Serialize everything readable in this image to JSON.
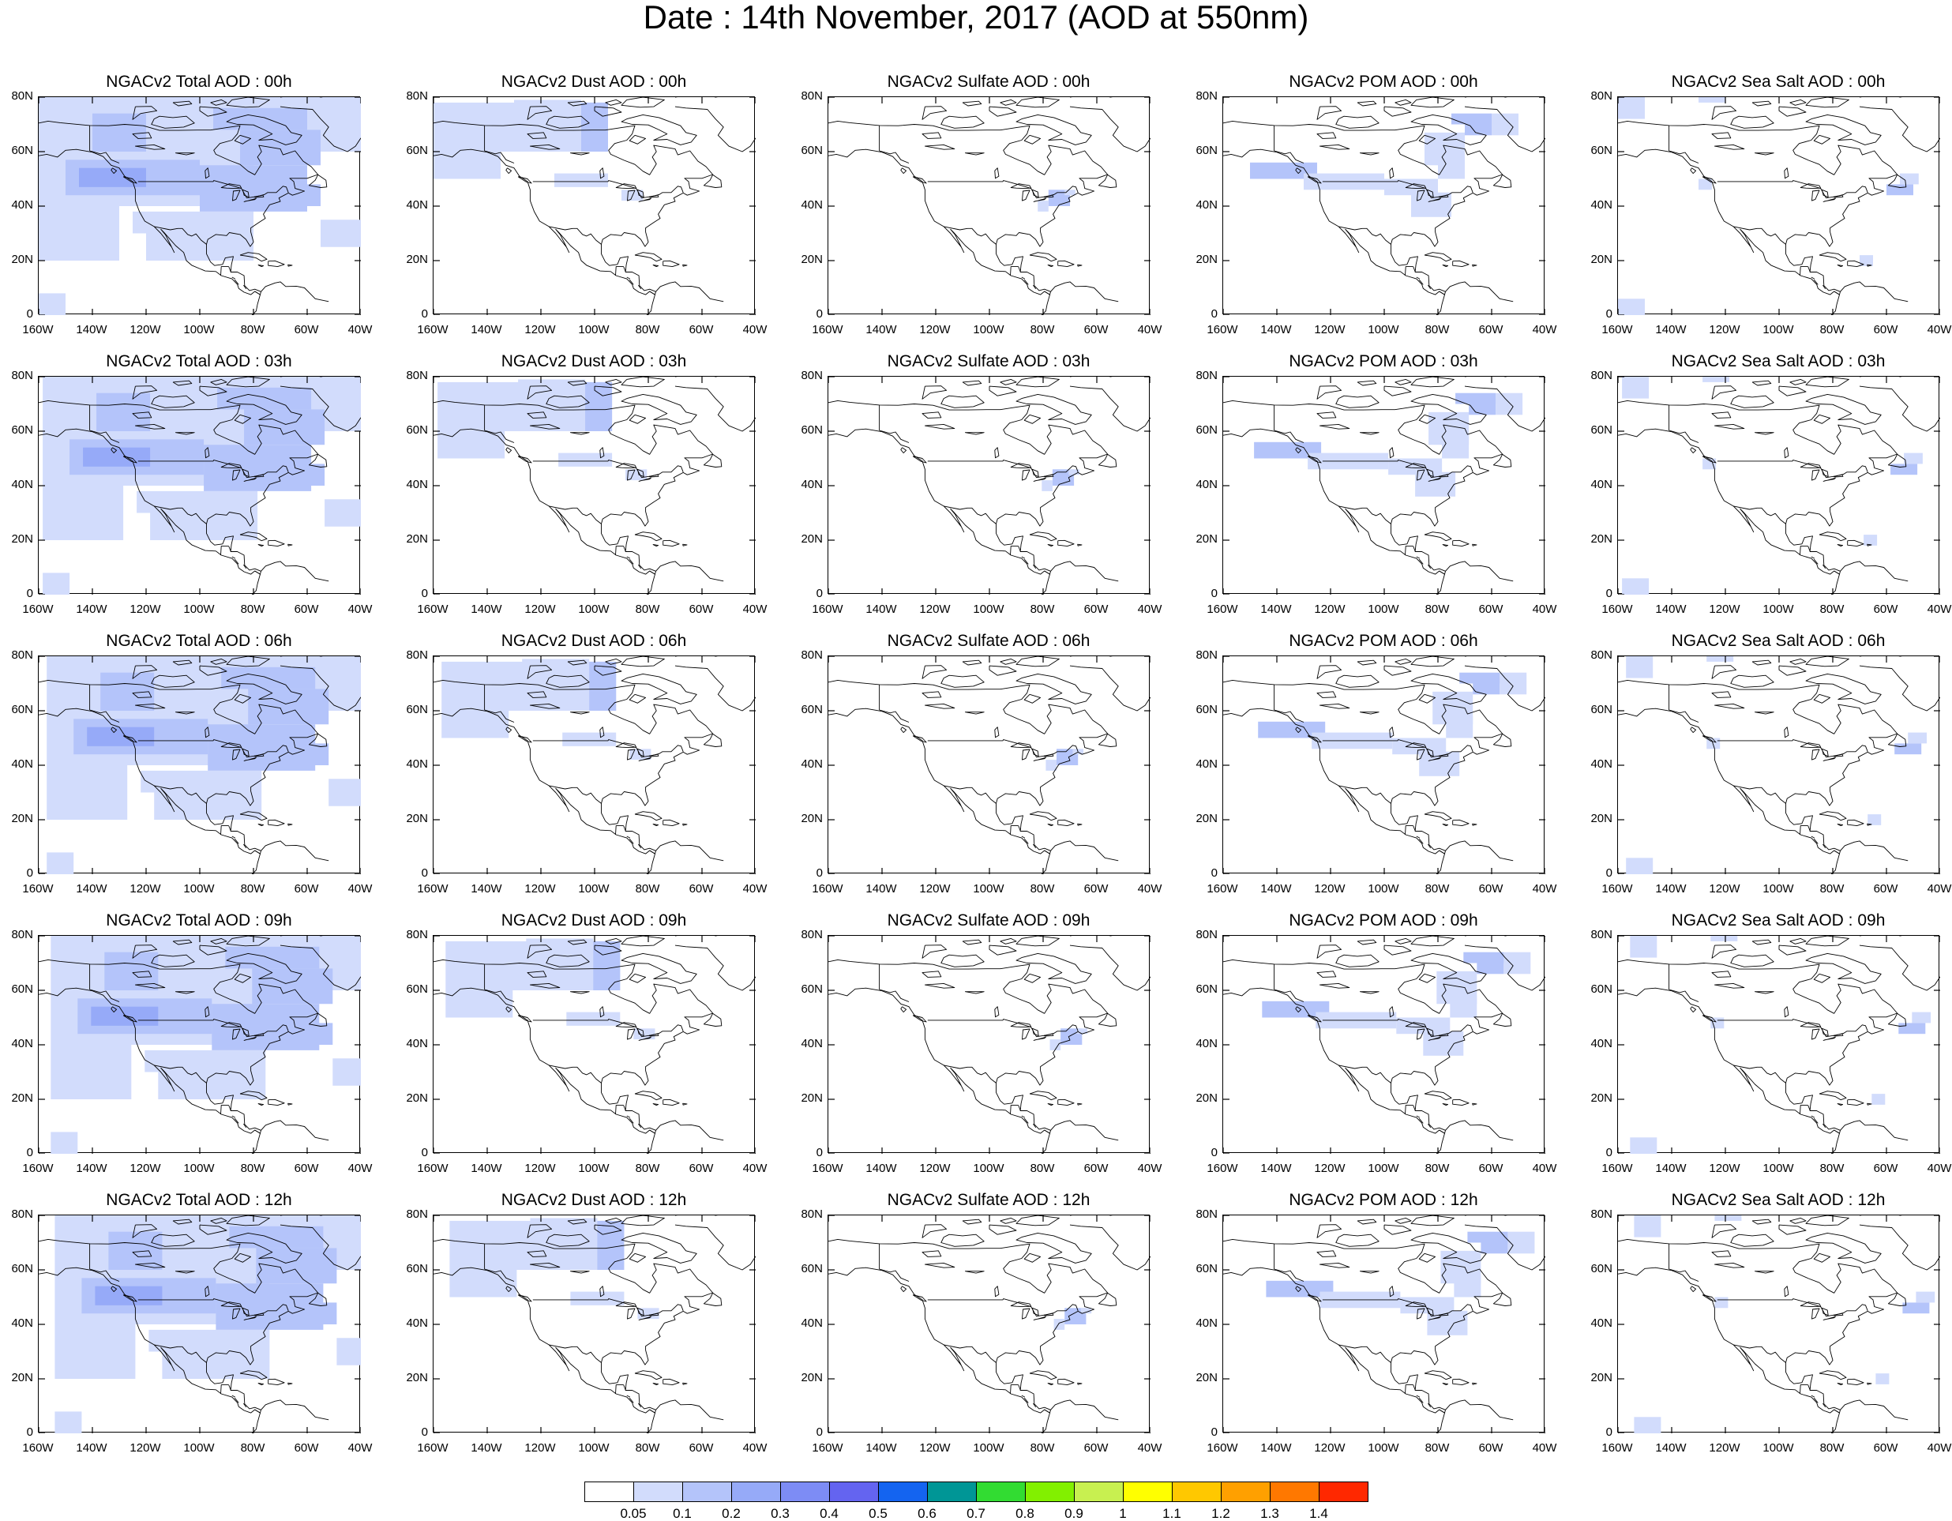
{
  "title": "Date : 14th November, 2017 (AOD at 550nm)",
  "lat_ticks": [
    "80N",
    "60N",
    "40N",
    "20N",
    "0"
  ],
  "lon_ticks": [
    "160W",
    "140W",
    "120W",
    "100W",
    "80W",
    "60W",
    "40W"
  ],
  "panels": [
    [
      "NGACv2 Total AOD : 00h",
      "NGACv2 Dust AOD : 00h",
      "NGACv2 Sulfate AOD : 00h",
      "NGACv2 POM AOD : 00h",
      "NGACv2 Sea Salt AOD : 00h"
    ],
    [
      "NGACv2 Total AOD : 03h",
      "NGACv2 Dust AOD : 03h",
      "NGACv2 Sulfate AOD : 03h",
      "NGACv2 POM AOD : 03h",
      "NGACv2 Sea Salt AOD : 03h"
    ],
    [
      "NGACv2 Total AOD : 06h",
      "NGACv2 Dust AOD : 06h",
      "NGACv2 Sulfate AOD : 06h",
      "NGACv2 POM AOD : 06h",
      "NGACv2 Sea Salt AOD : 06h"
    ],
    [
      "NGACv2 Total AOD : 09h",
      "NGACv2 Dust AOD : 09h",
      "NGACv2 Sulfate AOD : 09h",
      "NGACv2 POM AOD : 09h",
      "NGACv2 Sea Salt  AOD : 09h"
    ],
    [
      "NGACv2 Total AOD  : 12h",
      "NGACv2 Dust AOD : 12h",
      "NGACv2 Sulfate AOD : 12h",
      "NGACv2 POM  AOD : 12h",
      "NGACv2 Sea Salt  AOD : 12h"
    ]
  ],
  "colorbar": {
    "labels": [
      "0.05",
      "0.1",
      "0.2",
      "0.3",
      "0.4",
      "0.5",
      "0.6",
      "0.7",
      "0.8",
      "0.9",
      "1",
      "1.1",
      "1.2",
      "1.3",
      "1.4"
    ],
    "colors": [
      "#ffffff",
      "#d2dcfc",
      "#b4c4fa",
      "#96aaf8",
      "#7d8cf5",
      "#6464f0",
      "#1464f0",
      "#009696",
      "#32dc32",
      "#82f000",
      "#c8f050",
      "#ffff00",
      "#ffc800",
      "#ffa000",
      "#ff7800",
      "#ff2800"
    ]
  },
  "aod_colors": {
    "low": "#d2dcfc",
    "mid": "#b4c4fa",
    "high": "#96aaf8"
  }
}
